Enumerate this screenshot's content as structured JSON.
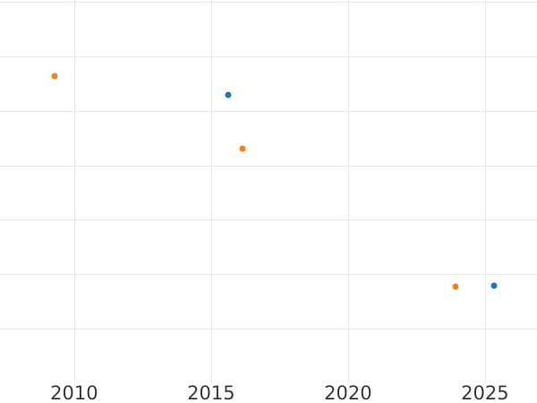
{
  "chart_data": {
    "type": "scatter",
    "title": "",
    "xlabel": "",
    "ylabel": "",
    "x_tick_labels": [
      "2010",
      "2015",
      "2020",
      "2025"
    ],
    "x_tick_values": [
      2010,
      2015,
      2020,
      2025
    ],
    "y_tick_labels": [],
    "y_gridline_values": [
      1,
      2,
      3,
      4,
      5,
      6,
      7
    ],
    "x_range": [
      2007.29,
      2026.9
    ],
    "y_range": [
      0,
      7.03
    ],
    "grid": true,
    "legend": false,
    "y_unit": "gridline-units (y tick labels cropped out of view)",
    "series": [
      {
        "name": "blue-series",
        "color": "#1f77b4",
        "points": [
          {
            "x": 2015.62,
            "y": 5.29
          },
          {
            "x": 2025.34,
            "y": 1.79
          }
        ]
      },
      {
        "name": "orange-series",
        "color": "#ff7f0e",
        "points": [
          {
            "x": 2009.29,
            "y": 5.63
          },
          {
            "x": 2016.15,
            "y": 4.31
          },
          {
            "x": 2023.94,
            "y": 1.78
          }
        ]
      }
    ],
    "marker_diameter_px": 7,
    "colors": {
      "background": "#ffffff",
      "gridline": "#e8e8e8",
      "tick_label": "#3a3a3a"
    }
  }
}
